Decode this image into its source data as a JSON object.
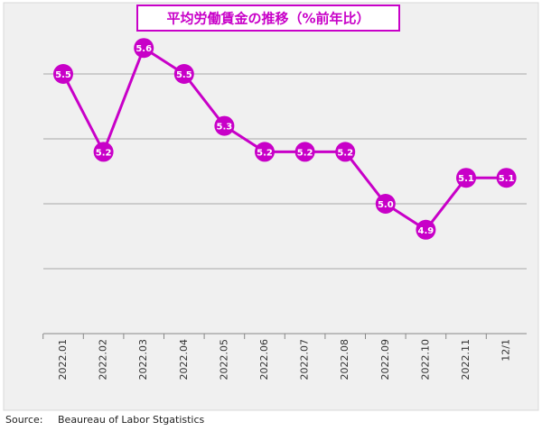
{
  "chart_data": {
    "type": "line",
    "title": "平均労働賃金の推移（%前年比）",
    "categories": [
      "2022.01",
      "2022.02",
      "2022.03",
      "2022.04",
      "2022.05",
      "2022.06",
      "2022.07",
      "2022.08",
      "2022.09",
      "2022.10",
      "2022.11",
      "12/1"
    ],
    "series": [
      {
        "color": "#c800c8",
        "values": [
          5.5,
          5.2,
          5.6,
          5.5,
          5.3,
          5.2,
          5.2,
          5.2,
          5.0,
          4.9,
          5.1,
          5.1
        ],
        "value_labels": [
          "5.5",
          "5.2",
          "5.6",
          "5.5",
          "5.3",
          "5.2",
          "5.2",
          "5.2",
          "5.0",
          "4.9",
          "5.1",
          "5.1"
        ]
      }
    ],
    "ylim": [
      4.5,
      5.75
    ],
    "yticks": [
      4.75,
      5.0,
      5.25,
      5.5
    ],
    "grid": true,
    "source_label": "Source:",
    "source": "Beaureau of Labor Stgatistics"
  }
}
